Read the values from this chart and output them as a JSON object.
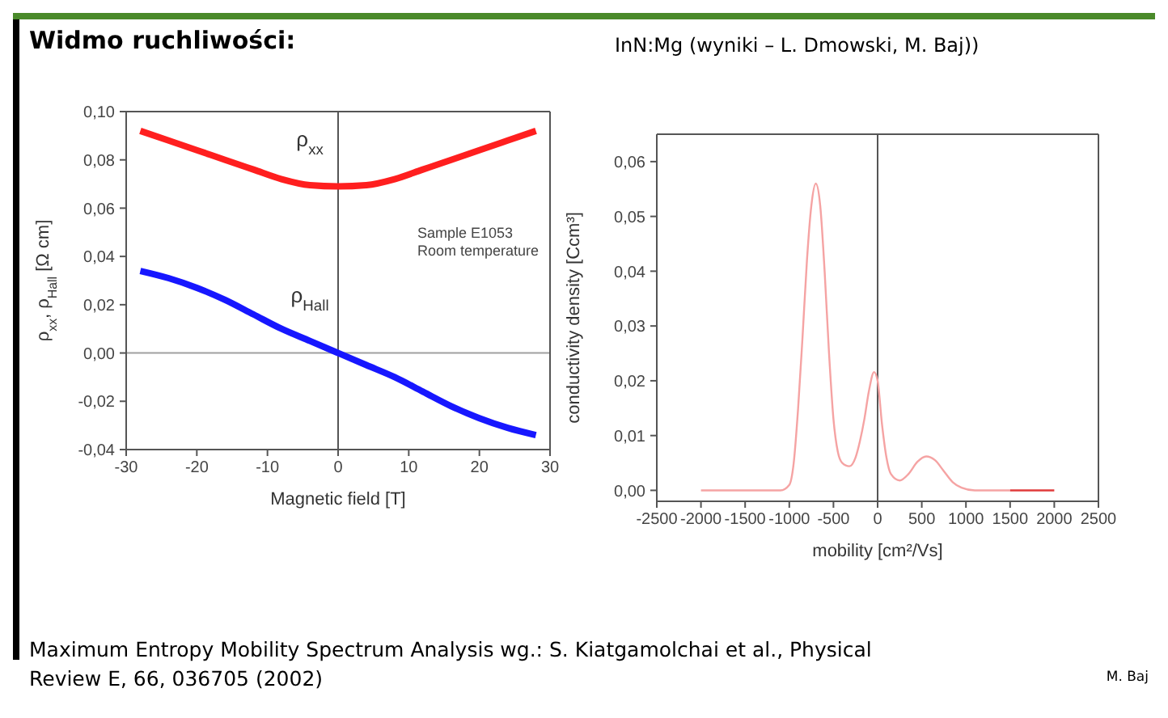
{
  "chart_data": [
    {
      "type": "line",
      "title": "Widmo ruchliwości:",
      "xlabel": "Magnetic field [T]",
      "ylabel": "ρ$_{xx}$, ρ$_{Hall}$ [Ω cm]",
      "series": [
        {
          "name": "ρ$_{xx}$",
          "color": "#ff1f1f",
          "x": [
            -28,
            -24,
            -20,
            -16,
            -12,
            -8,
            -4,
            0,
            4,
            8,
            12,
            16,
            20,
            24,
            28
          ],
          "values": [
            0.092,
            0.088,
            0.084,
            0.08,
            0.076,
            0.072,
            0.0695,
            0.069,
            0.0695,
            0.072,
            0.076,
            0.08,
            0.084,
            0.088,
            0.092
          ]
        },
        {
          "name": "ρ$_{Hall}$",
          "color": "#1717ff",
          "x": [
            -28,
            -24,
            -20,
            -16,
            -12,
            -8,
            -4,
            0,
            4,
            8,
            12,
            16,
            20,
            24,
            28
          ],
          "values": [
            0.034,
            0.031,
            0.027,
            0.022,
            0.016,
            0.01,
            0.005,
            0,
            -0.005,
            -0.01,
            -0.016,
            -0.022,
            -0.027,
            -0.031,
            -0.034
          ]
        }
      ],
      "xlim": [
        -30,
        30
      ],
      "xticks": [
        -30,
        -20,
        -10,
        0,
        10,
        20,
        30
      ],
      "ylim": [
        -0.04,
        0.1
      ],
      "yticks": [
        {
          "value": -0.04,
          "label": "-0,04"
        },
        {
          "value": -0.02,
          "label": "-0,02"
        },
        {
          "value": 0,
          "label": "0,00"
        },
        {
          "value": 0.02,
          "label": "0,02"
        },
        {
          "value": 0.04,
          "label": "0,04"
        },
        {
          "value": 0.06,
          "label": "0,06"
        },
        {
          "value": 0.08,
          "label": "0,08"
        },
        {
          "value": 0.1,
          "label": "0,10"
        }
      ],
      "ref_lines": [
        {
          "axis": "x",
          "value": 0,
          "color": "#555555"
        },
        {
          "axis": "y",
          "value": 0,
          "color": "#a0a0a0"
        }
      ],
      "annotations": [
        "Sample E1053",
        "Room temperature"
      ]
    },
    {
      "type": "line",
      "title": "InN:Mg (wyniki – L. Dmowski, M. Baj))",
      "xlabel": "mobility [cm²/Vs]",
      "ylabel": "conductivity density [Ccm³]",
      "series": [
        {
          "color": "#f5a3a3",
          "x": [
            -2000,
            -1100,
            -1000,
            -950,
            -900,
            -850,
            -800,
            -750,
            -700,
            -650,
            -600,
            -550,
            -500,
            -450,
            -400,
            -320,
            -250,
            -200,
            -150,
            -100,
            -40,
            0,
            50,
            100,
            150,
            250,
            350,
            450,
            550,
            650,
            750,
            850,
            950,
            1100,
            1500
          ],
          "values": [
            0,
            0,
            0.001,
            0.005,
            0.015,
            0.028,
            0.042,
            0.052,
            0.056,
            0.052,
            0.04,
            0.025,
            0.013,
            0.007,
            0.005,
            0.0044,
            0.006,
            0.009,
            0.013,
            0.018,
            0.0216,
            0.02,
            0.012,
            0.006,
            0.003,
            0.0018,
            0.003,
            0.0052,
            0.0062,
            0.0055,
            0.0035,
            0.0015,
            0.0005,
            0,
            0
          ]
        },
        {
          "color": "#e03a3a",
          "x": [
            1500,
            2000
          ],
          "values": [
            0,
            0
          ]
        }
      ],
      "xlim": [
        -2500,
        2500
      ],
      "xticks": [
        -2500,
        -2000,
        -1500,
        -1000,
        -500,
        0,
        500,
        1000,
        1500,
        2000,
        2500
      ],
      "ylim": [
        -0.002,
        0.065
      ],
      "yticks": [
        {
          "value": 0,
          "label": "0,00"
        },
        {
          "value": 0.01,
          "label": "0,01"
        },
        {
          "value": 0.02,
          "label": "0,02"
        },
        {
          "value": 0.03,
          "label": "0,03"
        },
        {
          "value": 0.04,
          "label": "0,04"
        },
        {
          "value": 0.05,
          "label": "0,05"
        },
        {
          "value": 0.06,
          "label": "0,06"
        }
      ],
      "ref_lines": [
        {
          "axis": "x",
          "value": 0,
          "color": "#555555"
        }
      ],
      "annotations": [
        "Maximum Entropy Mobility Spectrum Analysis wg.: S. Kiatgamolchai et al., Physical Review E, 66, 036705 (2002)",
        "M. Baj"
      ]
    }
  ]
}
